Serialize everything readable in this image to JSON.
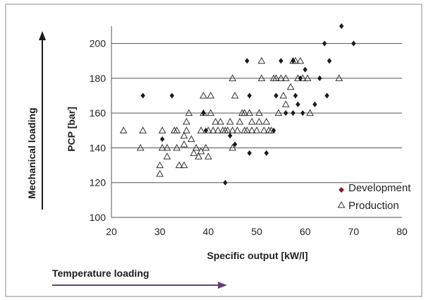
{
  "chart_data": {
    "type": "scatter",
    "xlabel": "Specific output [kW/l]",
    "ylabel": "PCP  [bar]",
    "xlim": [
      20,
      80
    ],
    "ylim": [
      100,
      210
    ],
    "x_ticks": [
      20,
      30,
      40,
      50,
      60,
      70,
      80
    ],
    "y_ticks": [
      100,
      120,
      140,
      160,
      180,
      200
    ],
    "grid": "horizontal",
    "legend_position": "bottom-right",
    "colors": {
      "development": "#1a1a1a",
      "production": "#333333",
      "grid": "#555555",
      "arrow": "#6b3c7a"
    },
    "series": [
      {
        "name": "Development",
        "marker": "diamond",
        "points": [
          [
            26.5,
            170
          ],
          [
            32.5,
            170
          ],
          [
            30.5,
            145
          ],
          [
            39,
            160
          ],
          [
            39.5,
            150
          ],
          [
            43.5,
            120
          ],
          [
            45.5,
            142
          ],
          [
            44.5,
            147
          ],
          [
            48.5,
            170
          ],
          [
            48.5,
            137
          ],
          [
            48,
            190
          ],
          [
            52,
            137
          ],
          [
            53.5,
            150
          ],
          [
            54,
            170
          ],
          [
            55,
            190
          ],
          [
            56,
            160
          ],
          [
            57.5,
            160
          ],
          [
            57.5,
            190
          ],
          [
            58,
            170
          ],
          [
            58.5,
            165
          ],
          [
            59,
            180
          ],
          [
            59.5,
            160
          ],
          [
            60,
            185
          ],
          [
            62,
            165
          ],
          [
            63,
            180
          ],
          [
            64,
            200
          ],
          [
            64.5,
            170
          ],
          [
            65,
            190
          ],
          [
            67.5,
            210
          ],
          [
            70,
            200
          ]
        ]
      },
      {
        "name": "Production",
        "marker": "triangle",
        "points": [
          [
            22.5,
            150
          ],
          [
            26,
            140
          ],
          [
            26.5,
            150
          ],
          [
            30,
            130
          ],
          [
            30,
            125
          ],
          [
            30.5,
            140
          ],
          [
            30.5,
            150
          ],
          [
            31.5,
            140
          ],
          [
            31.5,
            135
          ],
          [
            33,
            150
          ],
          [
            33.5,
            150
          ],
          [
            33.5,
            140
          ],
          [
            34,
            130
          ],
          [
            35,
            130
          ],
          [
            35,
            142
          ],
          [
            35,
            147
          ],
          [
            35.5,
            150
          ],
          [
            35.5,
            155
          ],
          [
            36,
            160
          ],
          [
            36.5,
            145
          ],
          [
            37,
            137
          ],
          [
            37.5,
            140
          ],
          [
            38,
            135
          ],
          [
            38.5,
            150
          ],
          [
            38.5,
            138
          ],
          [
            39,
            160
          ],
          [
            39,
            170
          ],
          [
            39.5,
            140
          ],
          [
            40,
            135
          ],
          [
            40,
            150
          ],
          [
            40.5,
            160
          ],
          [
            40.5,
            170
          ],
          [
            41,
            150
          ],
          [
            41.5,
            155
          ],
          [
            42,
            150
          ],
          [
            42.5,
            155
          ],
          [
            43,
            150
          ],
          [
            43.5,
            150
          ],
          [
            44,
            150
          ],
          [
            44.5,
            155
          ],
          [
            45,
            140
          ],
          [
            45,
            150
          ],
          [
            45,
            180
          ],
          [
            45.5,
            170
          ],
          [
            46,
            150
          ],
          [
            46.5,
            155
          ],
          [
            47,
            160
          ],
          [
            47.5,
            150
          ],
          [
            47.5,
            160
          ],
          [
            48,
            150
          ],
          [
            48.5,
            160
          ],
          [
            49,
            150
          ],
          [
            49,
            155
          ],
          [
            50,
            150
          ],
          [
            50.5,
            155
          ],
          [
            50.5,
            160
          ],
          [
            51,
            190
          ],
          [
            51,
            180
          ],
          [
            51.5,
            150
          ],
          [
            52,
            155
          ],
          [
            52.5,
            150
          ],
          [
            53,
            150
          ],
          [
            53.5,
            180
          ],
          [
            54,
            180
          ],
          [
            54.5,
            160
          ],
          [
            55,
            180
          ],
          [
            55.5,
            170
          ],
          [
            56,
            165
          ],
          [
            56,
            180
          ],
          [
            57,
            175
          ],
          [
            57.5,
            190
          ],
          [
            58,
            190
          ],
          [
            58.5,
            180
          ],
          [
            59,
            190
          ],
          [
            59.5,
            180
          ],
          [
            60.5,
            180
          ],
          [
            61,
            160
          ],
          [
            67,
            180
          ]
        ]
      }
    ]
  },
  "axis_labels": {
    "mechanical": "Mechanical loading",
    "temperature": "Temperature loading"
  }
}
